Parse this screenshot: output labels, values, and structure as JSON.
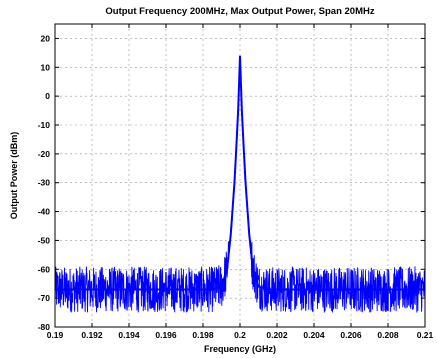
{
  "chart_data": {
    "type": "line",
    "title": "Output Frequency 200MHz, Max Output Power, Span 20MHz",
    "xlabel": "Frequency (GHz)",
    "ylabel": "Output Power (dBm)",
    "xlim": [
      0.19,
      0.21
    ],
    "ylim": [
      -80,
      25
    ],
    "x_ticks": [
      0.19,
      0.192,
      0.194,
      0.196,
      0.198,
      0.2,
      0.202,
      0.204,
      0.206,
      0.208,
      0.21
    ],
    "x_tick_labels": [
      "0.19",
      "0.192",
      "0.194",
      "0.196",
      "0.198",
      "0.2",
      "0.202",
      "0.204",
      "0.206",
      "0.208",
      "0.21"
    ],
    "y_ticks": [
      20,
      10,
      0,
      -10,
      -20,
      -30,
      -40,
      -50,
      -60,
      -70,
      -80
    ],
    "y_tick_labels": [
      "20",
      "10",
      "0",
      "-10",
      "-20",
      "-30",
      "-40",
      "-50",
      "-60",
      "-70",
      "-80"
    ],
    "grid": true,
    "line_color": "#0000ff",
    "series": [
      {
        "x": [
          0.19,
          0.192,
          0.194,
          0.196,
          0.198,
          0.1985,
          0.199,
          0.1993,
          0.1995,
          0.1997,
          0.1998,
          0.1999,
          0.2,
          0.2001,
          0.2002,
          0.2003,
          0.2005,
          0.2007,
          0.201,
          0.2015,
          0.202,
          0.204,
          0.206,
          0.208,
          0.21
        ],
        "y": [
          -67,
          -67,
          -67,
          -67,
          -67,
          -67,
          -66,
          -60,
          -48,
          -30,
          -18,
          -5,
          14,
          -5,
          -18,
          -30,
          -48,
          -60,
          -66,
          -67,
          -67,
          -67,
          -67,
          -67,
          -67
        ]
      }
    ]
  }
}
